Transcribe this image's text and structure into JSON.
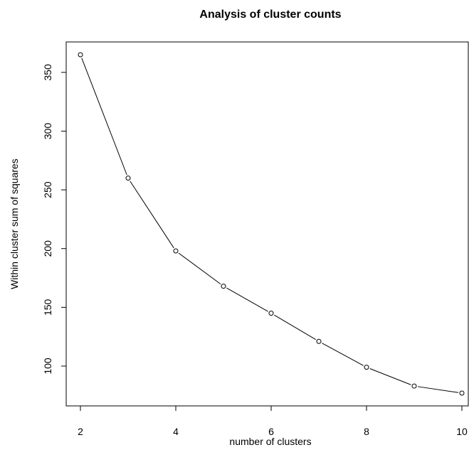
{
  "chart_data": {
    "type": "line",
    "title": "Analysis of cluster counts",
    "xlabel": "number of clusters",
    "ylabel": "Within cluster sum of squares",
    "x": [
      2,
      3,
      4,
      5,
      6,
      7,
      8,
      9,
      10
    ],
    "series": [
      {
        "values": [
          365,
          260,
          198,
          168,
          145,
          121,
          99,
          83,
          77
        ]
      }
    ],
    "xticks": [
      2,
      4,
      6,
      8,
      10
    ],
    "yticks": [
      100,
      150,
      200,
      250,
      300,
      350
    ],
    "xtick_labels": [
      "2",
      "4",
      "6",
      "8",
      "10"
    ],
    "ytick_labels": [
      "100",
      "150",
      "200",
      "250",
      "300",
      "350"
    ],
    "xlim": [
      2,
      10
    ],
    "ylim": [
      77,
      365
    ],
    "grid": false,
    "markers": "open-circle",
    "colors": {
      "line": "#000000",
      "marker_fill": "#ffffff",
      "marker_stroke": "#000000"
    }
  }
}
